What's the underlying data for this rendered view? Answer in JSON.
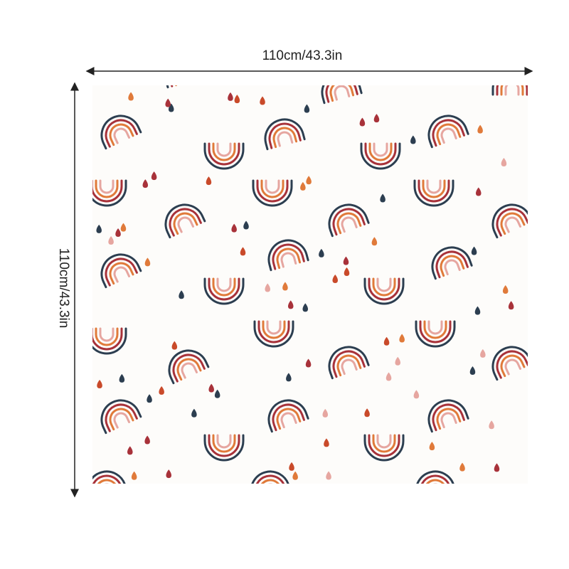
{
  "width_label": "110cm/43.3in",
  "height_label": "110cm/43.3in"
}
